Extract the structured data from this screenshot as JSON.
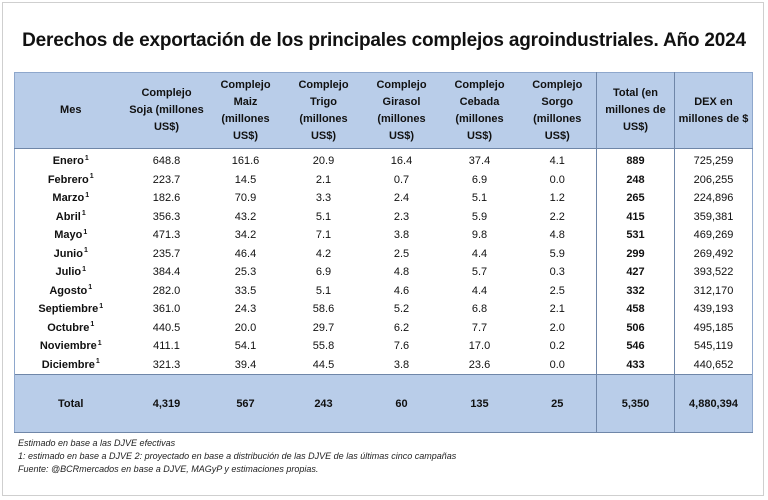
{
  "title": "Derechos de exportación de los principales complejos agroindustriales. Año 2024",
  "columns": [
    "Mes",
    "Complejo Soja (millones US$)",
    "Complejo Maiz (millones US$)",
    "Complejo Trigo (millones US$)",
    "Complejo Girasol (millones US$)",
    "Complejo Cebada (millones US$)",
    "Complejo Sorgo (millones US$)",
    "Total (en millones de US$)",
    "DEX en millones de $"
  ],
  "rows": [
    {
      "mes": "Enero",
      "sup": "1",
      "soja": "648.8",
      "maiz": "161.6",
      "trigo": "20.9",
      "girasol": "16.4",
      "cebada": "37.4",
      "sorgo": "4.1",
      "total": "889",
      "dex": "725,259"
    },
    {
      "mes": "Febrero",
      "sup": "1",
      "soja": "223.7",
      "maiz": "14.5",
      "trigo": "2.1",
      "girasol": "0.7",
      "cebada": "6.9",
      "sorgo": "0.0",
      "total": "248",
      "dex": "206,255"
    },
    {
      "mes": "Marzo",
      "sup": "1",
      "soja": "182.6",
      "maiz": "70.9",
      "trigo": "3.3",
      "girasol": "2.4",
      "cebada": "5.1",
      "sorgo": "1.2",
      "total": "265",
      "dex": "224,896"
    },
    {
      "mes": "Abril",
      "sup": "1",
      "soja": "356.3",
      "maiz": "43.2",
      "trigo": "5.1",
      "girasol": "2.3",
      "cebada": "5.9",
      "sorgo": "2.2",
      "total": "415",
      "dex": "359,381"
    },
    {
      "mes": "Mayo",
      "sup": "1",
      "soja": "471.3",
      "maiz": "34.2",
      "trigo": "7.1",
      "girasol": "3.8",
      "cebada": "9.8",
      "sorgo": "4.8",
      "total": "531",
      "dex": "469,269"
    },
    {
      "mes": "Junio",
      "sup": "1",
      "soja": "235.7",
      "maiz": "46.4",
      "trigo": "4.2",
      "girasol": "2.5",
      "cebada": "4.4",
      "sorgo": "5.9",
      "total": "299",
      "dex": "269,492"
    },
    {
      "mes": "Julio",
      "sup": "1",
      "soja": "384.4",
      "maiz": "25.3",
      "trigo": "6.9",
      "girasol": "4.8",
      "cebada": "5.7",
      "sorgo": "0.3",
      "total": "427",
      "dex": "393,522"
    },
    {
      "mes": "Agosto",
      "sup": "1",
      "soja": "282.0",
      "maiz": "33.5",
      "trigo": "5.1",
      "girasol": "4.6",
      "cebada": "4.4",
      "sorgo": "2.5",
      "total": "332",
      "dex": "312,170"
    },
    {
      "mes": "Septiembre",
      "sup": "1",
      "soja": "361.0",
      "maiz": "24.3",
      "trigo": "58.6",
      "girasol": "5.2",
      "cebada": "6.8",
      "sorgo": "2.1",
      "total": "458",
      "dex": "439,193"
    },
    {
      "mes": "Octubre",
      "sup": "1",
      "soja": "440.5",
      "maiz": "20.0",
      "trigo": "29.7",
      "girasol": "6.2",
      "cebada": "7.7",
      "sorgo": "2.0",
      "total": "506",
      "dex": "495,185"
    },
    {
      "mes": "Noviembre",
      "sup": "1",
      "soja": "411.1",
      "maiz": "54.1",
      "trigo": "55.8",
      "girasol": "7.6",
      "cebada": "17.0",
      "sorgo": "0.2",
      "total": "546",
      "dex": "545,119"
    },
    {
      "mes": "Diciembre",
      "sup": "1",
      "soja": "321.3",
      "maiz": "39.4",
      "trigo": "44.5",
      "girasol": "3.8",
      "cebada": "23.6",
      "sorgo": "0.0",
      "total": "433",
      "dex": "440,652"
    }
  ],
  "totals": {
    "label": "Total",
    "soja": "4,319",
    "maiz": "567",
    "trigo": "243",
    "girasol": "60",
    "cebada": "135",
    "sorgo": "25",
    "total": "5,350",
    "dex": "4,880,394"
  },
  "notes": [
    "Estimado en base a las DJVE efectivas",
    "1: estimado en base a DJVE 2: proyectado en base a distribución de las DJVE de las últimas cinco campañas",
    "Fuente: @BCRmercados en base a DJVE, MAGyP y estimaciones propias."
  ]
}
